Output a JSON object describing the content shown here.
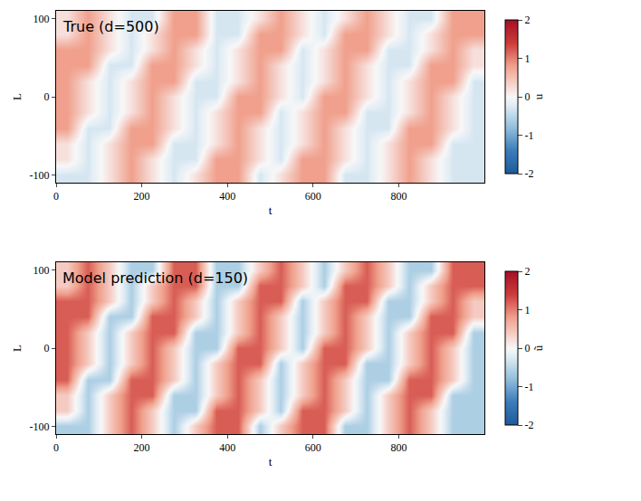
{
  "chart_data": [
    {
      "type": "heatmap",
      "annotation": "True (d=500)",
      "x_label": "t",
      "y_label": "L",
      "colorbar_label": "u",
      "x": [
        25,
        75,
        125,
        175,
        225,
        275,
        325,
        375,
        425,
        475,
        525,
        575,
        625,
        675,
        725,
        775,
        825,
        875,
        925,
        975
      ],
      "y": [
        -100,
        -80,
        -60,
        -40,
        -20,
        0,
        20,
        40,
        60,
        80,
        100
      ],
      "z": [
        [
          -0.3,
          -0.3,
          0.2,
          0.8,
          0.2,
          -0.3,
          0.2,
          0.8,
          0.8,
          -0.3,
          0.2,
          0.8,
          0.8,
          -0.3,
          -0.3,
          0.2,
          0.8,
          0.2,
          -0.3,
          -0.3
        ],
        [
          0.2,
          -0.3,
          0.2,
          0.8,
          0.2,
          -0.3,
          -0.3,
          0.8,
          0.8,
          0.2,
          -0.3,
          0.8,
          0.8,
          0.2,
          -0.3,
          0.2,
          0.8,
          0.2,
          -0.3,
          -0.3
        ],
        [
          0.2,
          -0.3,
          0.2,
          0.8,
          0.8,
          -0.3,
          -0.3,
          0.2,
          0.8,
          0.2,
          -0.3,
          0.2,
          0.8,
          0.2,
          -0.3,
          0.2,
          0.8,
          0.8,
          -0.3,
          -0.3
        ],
        [
          0.8,
          -0.3,
          -0.3,
          0.8,
          0.8,
          0.2,
          -0.3,
          0.2,
          0.8,
          0.2,
          -0.3,
          0.2,
          0.8,
          0.2,
          -0.3,
          -0.3,
          0.8,
          0.8,
          0.2,
          -0.3
        ],
        [
          0.8,
          0.2,
          -0.3,
          0.2,
          0.8,
          0.2,
          -0.3,
          0.2,
          0.8,
          0.8,
          -0.3,
          0.2,
          0.8,
          0.8,
          -0.3,
          -0.3,
          0.2,
          0.8,
          0.2,
          -0.3
        ],
        [
          0.8,
          0.2,
          -0.3,
          0.2,
          0.8,
          0.2,
          -0.3,
          -0.3,
          0.8,
          0.8,
          0.2,
          -0.3,
          0.8,
          0.8,
          0.2,
          -0.3,
          0.2,
          0.8,
          0.2,
          -0.3
        ],
        [
          0.8,
          0.2,
          -0.3,
          0.2,
          0.8,
          0.8,
          -0.3,
          -0.3,
          0.2,
          0.8,
          0.2,
          -0.3,
          0.2,
          0.8,
          0.2,
          -0.3,
          0.2,
          0.8,
          0.8,
          -0.3
        ],
        [
          0.8,
          0.8,
          -0.3,
          -0.3,
          0.8,
          0.8,
          0.2,
          -0.3,
          0.2,
          0.8,
          0.2,
          -0.3,
          0.2,
          0.8,
          0.2,
          -0.3,
          -0.3,
          0.8,
          0.8,
          0.2
        ],
        [
          0.8,
          0.8,
          0.2,
          -0.3,
          0.2,
          0.8,
          0.2,
          -0.3,
          0.2,
          0.8,
          0.8,
          -0.3,
          0.2,
          0.8,
          0.8,
          -0.3,
          -0.3,
          0.2,
          0.8,
          0.2
        ],
        [
          0.2,
          0.8,
          0.2,
          -0.3,
          0.2,
          0.8,
          0.8,
          -0.3,
          -0.3,
          0.8,
          0.8,
          0.2,
          -0.3,
          0.8,
          0.8,
          0.2,
          -0.3,
          0.2,
          0.8,
          0.8
        ],
        [
          0.2,
          0.8,
          0.2,
          -0.3,
          -0.3,
          0.8,
          0.8,
          -0.3,
          -0.3,
          0.2,
          0.8,
          0.2,
          -0.3,
          0.2,
          0.8,
          0.2,
          -0.3,
          -0.3,
          0.8,
          0.8
        ]
      ],
      "xlim": [
        0,
        1000
      ],
      "ylim": [
        -110,
        110
      ],
      "xticks": [
        0,
        200,
        400,
        600,
        800
      ],
      "yticks": [
        -100,
        0,
        100
      ],
      "colorbar_range": [
        -2,
        2
      ],
      "colorbar_ticks": [
        -2,
        -1,
        0,
        1,
        2
      ]
    },
    {
      "type": "heatmap",
      "annotation": "Model prediction (d=150)",
      "x_label": "t",
      "y_label": "L",
      "colorbar_label": "ũ",
      "x": [
        25,
        75,
        125,
        175,
        225,
        275,
        325,
        375,
        425,
        475,
        525,
        575,
        625,
        675,
        725,
        775,
        825,
        875,
        925,
        975
      ],
      "y": [
        -100,
        -80,
        -60,
        -40,
        -20,
        0,
        20,
        40,
        60,
        80,
        100
      ],
      "z": [
        [
          -0.6,
          -0.6,
          0.4,
          1.2,
          0.4,
          -0.6,
          0.4,
          1.2,
          1.2,
          -0.6,
          0.4,
          1.2,
          1.2,
          -0.6,
          -0.6,
          0.4,
          1.2,
          0.4,
          -0.6,
          -0.6
        ],
        [
          0.4,
          -0.6,
          0.4,
          1.2,
          0.4,
          -0.6,
          -0.6,
          1.2,
          1.2,
          0.4,
          -0.6,
          1.2,
          1.2,
          0.4,
          -0.6,
          0.4,
          1.2,
          0.4,
          -0.6,
          -0.6
        ],
        [
          0.4,
          -0.6,
          0.4,
          1.2,
          1.2,
          -0.6,
          -0.6,
          0.4,
          1.2,
          0.4,
          -0.6,
          0.4,
          1.2,
          0.4,
          -0.6,
          0.4,
          1.2,
          1.2,
          -0.6,
          -0.6
        ],
        [
          1.2,
          -0.6,
          -0.6,
          1.2,
          1.2,
          0.4,
          -0.6,
          0.4,
          1.2,
          0.4,
          -0.6,
          0.4,
          1.2,
          0.4,
          -0.6,
          -0.6,
          1.2,
          1.2,
          0.4,
          -0.6
        ],
        [
          1.2,
          0.4,
          -0.6,
          0.4,
          1.2,
          0.4,
          -0.6,
          0.4,
          1.2,
          1.2,
          -0.6,
          0.4,
          1.2,
          1.2,
          -0.6,
          -0.6,
          0.4,
          1.2,
          0.4,
          -0.6
        ],
        [
          1.2,
          0.4,
          -0.6,
          0.4,
          1.2,
          0.4,
          -0.6,
          -0.6,
          1.2,
          1.2,
          0.4,
          -0.6,
          1.2,
          1.2,
          0.4,
          -0.6,
          0.4,
          1.2,
          0.4,
          -0.6
        ],
        [
          1.2,
          0.4,
          -0.6,
          0.4,
          1.2,
          1.2,
          -0.6,
          -0.6,
          0.4,
          1.2,
          0.4,
          -0.6,
          0.4,
          1.2,
          0.4,
          -0.6,
          0.4,
          1.2,
          1.2,
          -0.6
        ],
        [
          1.2,
          1.2,
          -0.6,
          -0.6,
          1.2,
          1.2,
          0.4,
          -0.6,
          0.4,
          1.2,
          0.4,
          -0.6,
          0.4,
          1.2,
          0.4,
          -0.6,
          -0.6,
          1.2,
          1.2,
          0.4
        ],
        [
          1.2,
          1.2,
          0.4,
          -0.6,
          0.4,
          1.2,
          0.4,
          -0.6,
          0.4,
          1.2,
          1.2,
          -0.6,
          0.4,
          1.2,
          1.2,
          -0.6,
          -0.6,
          0.4,
          1.2,
          0.4
        ],
        [
          0.4,
          1.2,
          0.4,
          -0.6,
          0.4,
          1.2,
          1.2,
          -0.6,
          -0.6,
          1.2,
          1.2,
          0.4,
          -0.6,
          1.2,
          1.2,
          0.4,
          -0.6,
          0.4,
          1.2,
          1.2
        ],
        [
          0.4,
          1.2,
          0.4,
          -0.6,
          -0.6,
          1.2,
          1.2,
          -0.6,
          -0.6,
          0.4,
          1.2,
          0.4,
          -0.6,
          0.4,
          1.2,
          0.4,
          -0.6,
          -0.6,
          1.2,
          1.2
        ]
      ],
      "xlim": [
        0,
        1000
      ],
      "ylim": [
        -110,
        110
      ],
      "xticks": [
        0,
        200,
        400,
        600,
        800
      ],
      "yticks": [
        -100,
        0,
        100
      ],
      "colorbar_range": [
        -2,
        2
      ],
      "colorbar_ticks": [
        -2,
        -1,
        0,
        1,
        2
      ]
    }
  ]
}
